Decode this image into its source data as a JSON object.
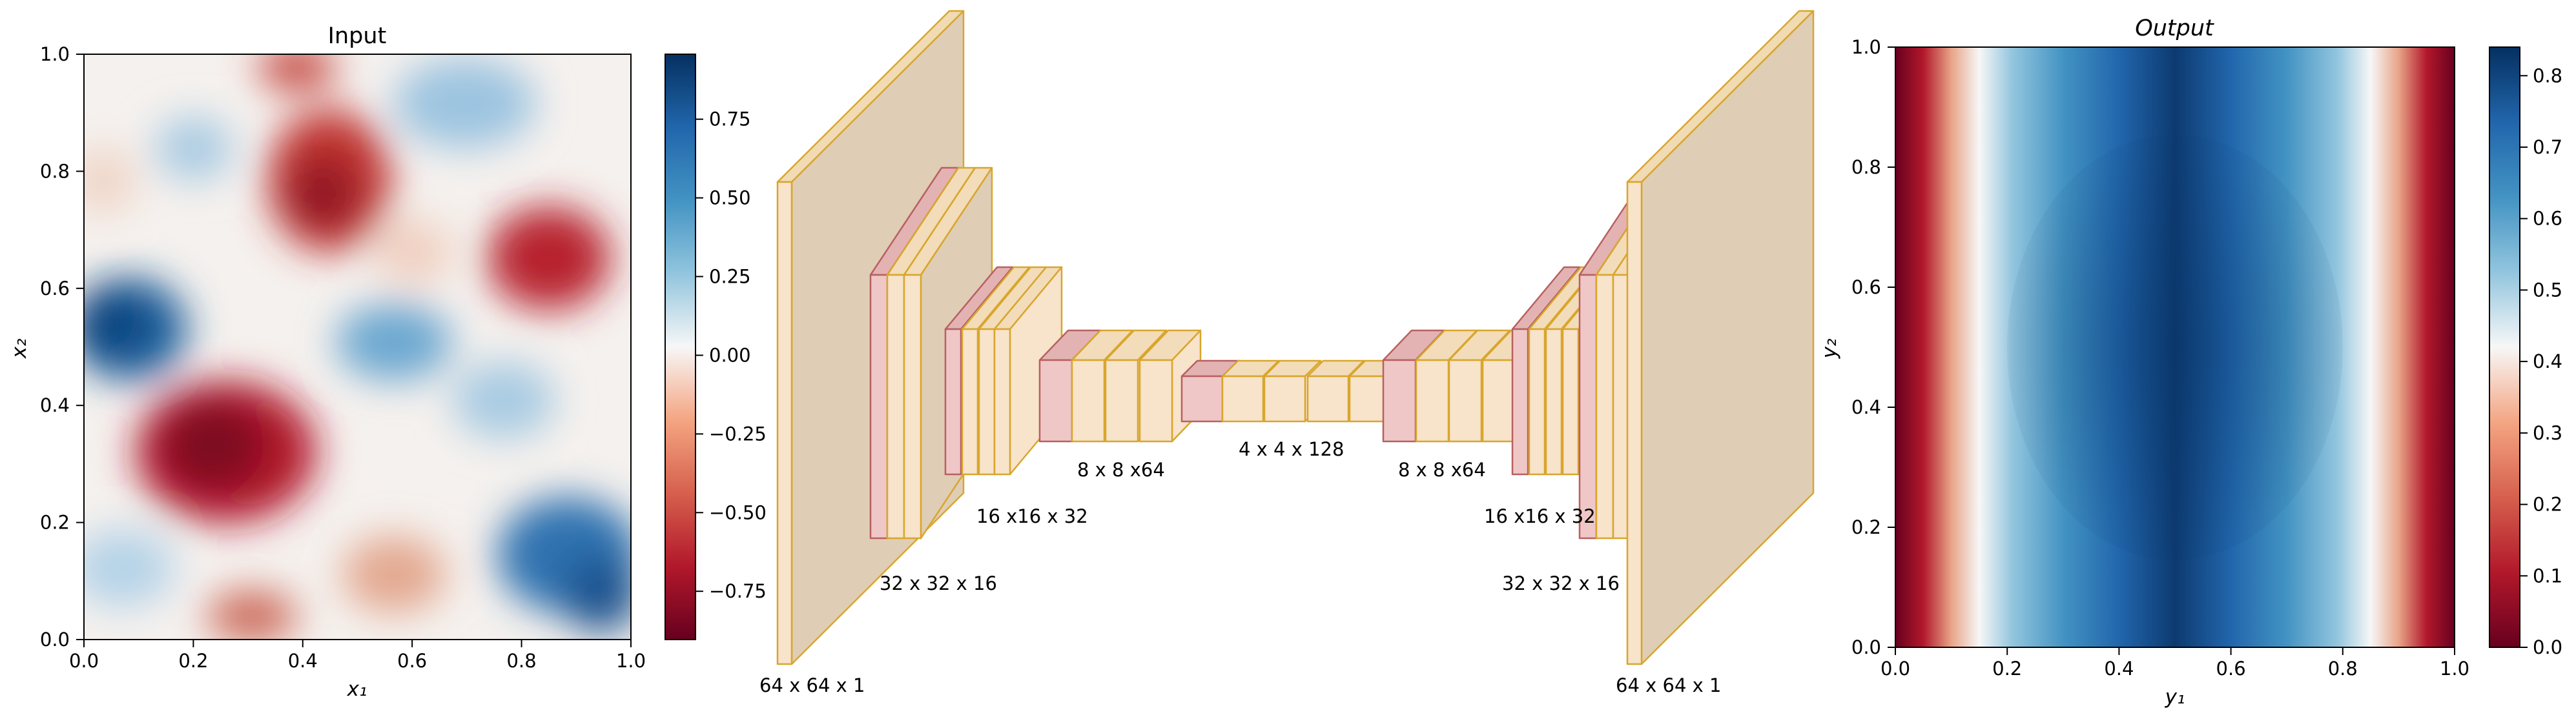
{
  "input_panel": {
    "title": "Input",
    "xlabel": "x₁",
    "ylabel": "x₂",
    "x_ticks": [
      "0.0",
      "0.2",
      "0.4",
      "0.6",
      "0.8",
      "1.0"
    ],
    "y_ticks": [
      "0.0",
      "0.2",
      "0.4",
      "0.6",
      "0.8",
      "1.0"
    ],
    "colorbar": {
      "ticks": [
        "0.75",
        "0.50",
        "0.25",
        "0.00",
        "−0.25",
        "−0.50",
        "−0.75"
      ],
      "range": [
        -0.93,
        0.93
      ],
      "colormap": "RdBu"
    }
  },
  "network": {
    "labels": {
      "l64_in": "64 x 64 x 1",
      "l32_enc": "32 x 32 x 16",
      "l16_enc": "16 x16 x 32",
      "l8_enc": "8 x 8 x64",
      "l4": "4 x 4 x 128",
      "l8_dec": "8 x 8 x64",
      "l16_dec": "16 x16 x 32",
      "l32_dec": "32 x 32 x 16",
      "l64_out": "64 x 64 x 1"
    },
    "colors": {
      "plate_face": "#dfcdb6",
      "plate_side": "#f0dbb4",
      "block_face": "#f8e3cb",
      "block_top": "#f2dcb9",
      "pink_face": "#efc7c7",
      "pink_top": "#e3b3b3",
      "yellow_edge": "#d8a62c",
      "pink_edge": "#b86060"
    }
  },
  "output_panel": {
    "title": "Output",
    "xlabel": "y₁",
    "ylabel": "y₂",
    "x_ticks": [
      "0.0",
      "0.2",
      "0.4",
      "0.6",
      "0.8",
      "1.0"
    ],
    "y_ticks": [
      "0.0",
      "0.2",
      "0.4",
      "0.6",
      "0.8",
      "1.0"
    ],
    "colorbar": {
      "ticks": [
        "0.8",
        "0.7",
        "0.6",
        "0.5",
        "0.4",
        "0.3",
        "0.2",
        "0.1",
        "0.0"
      ],
      "range": [
        0.0,
        0.84
      ],
      "colormap": "RdBu"
    }
  }
}
